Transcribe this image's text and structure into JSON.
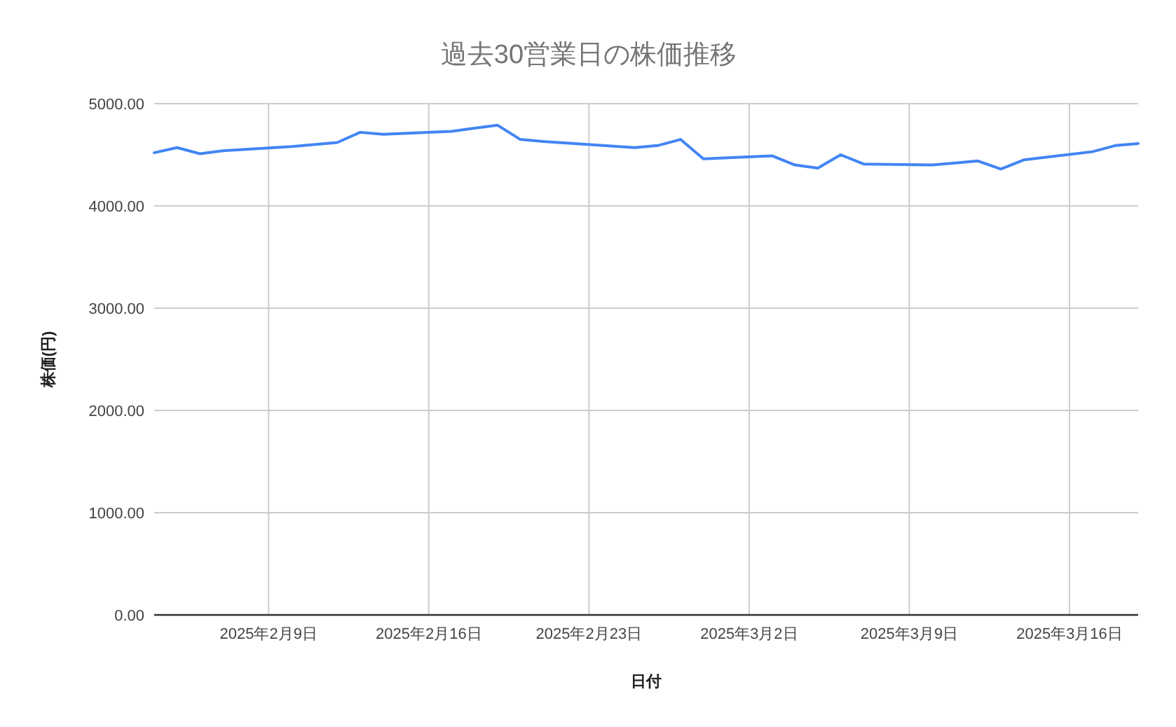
{
  "chart_data": {
    "type": "line",
    "title": "過去30営業日の株価推移",
    "xlabel": "日付",
    "ylabel": "株価(円)",
    "x": [
      "2025-02-04",
      "2025-02-05",
      "2025-02-06",
      "2025-02-07",
      "2025-02-10",
      "2025-02-12",
      "2025-02-13",
      "2025-02-14",
      "2025-02-17",
      "2025-02-18",
      "2025-02-19",
      "2025-02-20",
      "2025-02-21",
      "2025-02-25",
      "2025-02-26",
      "2025-02-27",
      "2025-02-28",
      "2025-03-03",
      "2025-03-04",
      "2025-03-05",
      "2025-03-06",
      "2025-03-07",
      "2025-03-10",
      "2025-03-11",
      "2025-03-12",
      "2025-03-13",
      "2025-03-14",
      "2025-03-17",
      "2025-03-18",
      "2025-03-19"
    ],
    "values": [
      4520,
      4570,
      4510,
      4540,
      4580,
      4620,
      4720,
      4700,
      4730,
      4760,
      4790,
      4650,
      4630,
      4570,
      4590,
      4650,
      4460,
      4490,
      4400,
      4370,
      4500,
      4410,
      4400,
      4420,
      4440,
      4360,
      4450,
      4530,
      4590,
      4610
    ],
    "color": "#4285f4",
    "xlim": [
      "2025-02-04",
      "2025-03-19"
    ],
    "xticks": [
      {
        "value": "2025-02-09",
        "label": "2025年2月9日"
      },
      {
        "value": "2025-02-16",
        "label": "2025年2月16日"
      },
      {
        "value": "2025-02-23",
        "label": "2025年2月23日"
      },
      {
        "value": "2025-03-02",
        "label": "2025年3月2日"
      },
      {
        "value": "2025-03-09",
        "label": "2025年3月9日"
      },
      {
        "value": "2025-03-16",
        "label": "2025年3月16日"
      }
    ],
    "ylim": [
      0,
      5000
    ],
    "yticks": [
      {
        "value": 0,
        "label": "0.00"
      },
      {
        "value": 1000,
        "label": "1000.00"
      },
      {
        "value": 2000,
        "label": "2000.00"
      },
      {
        "value": 3000,
        "label": "3000.00"
      },
      {
        "value": 4000,
        "label": "4000.00"
      },
      {
        "value": 5000,
        "label": "5000.00"
      }
    ],
    "grid": true
  }
}
